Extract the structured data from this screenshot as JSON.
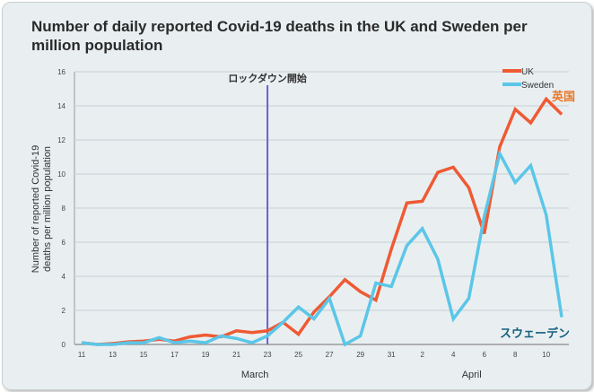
{
  "chart_data": {
    "type": "line",
    "title": "Number of daily reported Covid-19 deaths in the UK and Sweden per million population",
    "ylabel": "Number of reported Covid-19 deaths per million population",
    "xlabels": [
      "March",
      "April"
    ],
    "ylim": [
      0,
      16
    ],
    "yticks": [
      "0",
      "2",
      "4",
      "6",
      "8",
      "10",
      "12",
      "14",
      "16"
    ],
    "x": [
      "Mar 11",
      "Mar 12",
      "Mar 13",
      "Mar 14",
      "Mar 15",
      "Mar 16",
      "Mar 17",
      "Mar 18",
      "Mar 19",
      "Mar 20",
      "Mar 21",
      "Mar 22",
      "Mar 23",
      "Mar 24",
      "Mar 25",
      "Mar 26",
      "Mar 27",
      "Mar 28",
      "Mar 29",
      "Mar 30",
      "Mar 31",
      "Apr 1",
      "Apr 2",
      "Apr 3",
      "Apr 4",
      "Apr 5",
      "Apr 6",
      "Apr 7",
      "Apr 8",
      "Apr 9",
      "Apr 10",
      "Apr 11"
    ],
    "xticks": [
      "11",
      "13",
      "15",
      "17",
      "19",
      "21",
      "23",
      "25",
      "27",
      "29",
      "31",
      "2",
      "4",
      "6",
      "8",
      "10"
    ],
    "series": [
      {
        "name": "UK",
        "color": "#ef5a33",
        "values": [
          0.1,
          0,
          0.05,
          0.15,
          0.2,
          0.3,
          0.2,
          0.45,
          0.55,
          0.45,
          0.8,
          0.7,
          0.8,
          1.3,
          0.6,
          1.9,
          2.8,
          3.8,
          3.1,
          2.6,
          5.6,
          8.3,
          8.4,
          10.1,
          10.4,
          9.2,
          6.5,
          11.6,
          13.8,
          13.0,
          14.4,
          13.5
        ]
      },
      {
        "name": "Sweden",
        "color": "#5bc6e8",
        "values": [
          0.1,
          0,
          0,
          0.1,
          0.1,
          0.4,
          0.1,
          0.2,
          0.1,
          0.5,
          0.35,
          0.1,
          0.5,
          1.3,
          2.2,
          1.5,
          2.7,
          0,
          0.5,
          3.6,
          3.4,
          5.8,
          6.8,
          5.0,
          1.5,
          2.7,
          7.5,
          11.2,
          9.5,
          10.5,
          7.6,
          1.6
        ]
      }
    ],
    "annotations": {
      "lockdown": "ロックダウン開始",
      "lockdown_day_index": 12,
      "uk_jp": "英国",
      "sweden_jp": "スウェーデン"
    },
    "legend": "top-right",
    "grid": true
  }
}
